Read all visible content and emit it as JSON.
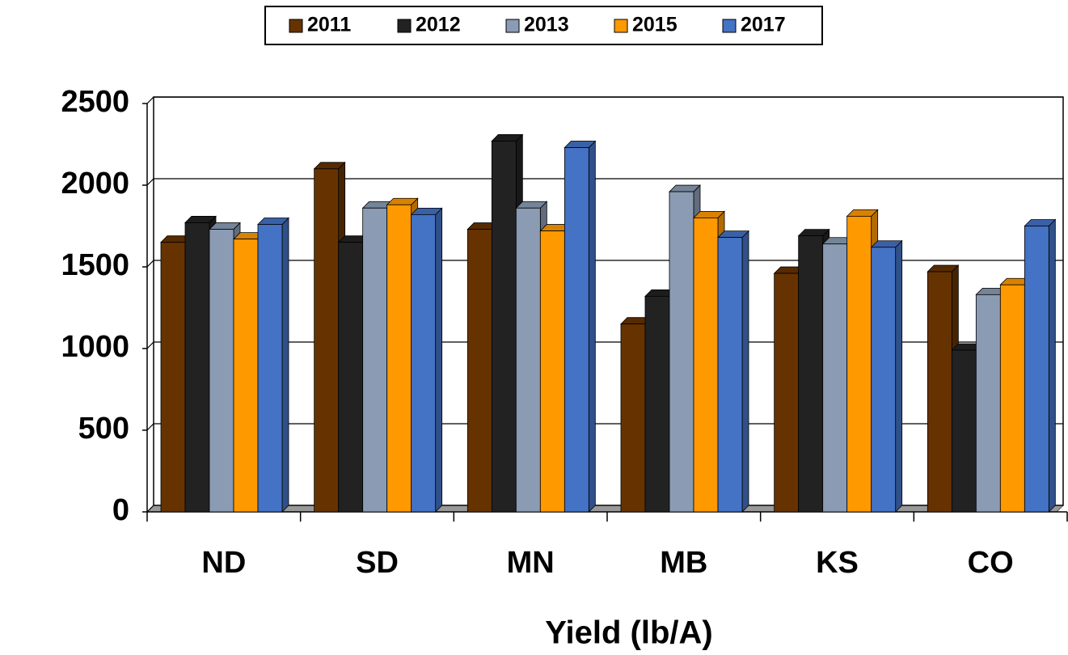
{
  "chart_data": {
    "type": "bar3d",
    "x_label": "Yield (lb/A)",
    "categories": [
      "ND",
      "SD",
      "MN",
      "MB",
      "KS",
      "CO"
    ],
    "series": [
      {
        "name": "2011",
        "color": "#663300",
        "values": [
          1650,
          2100,
          1730,
          1150,
          1460,
          1470
        ]
      },
      {
        "name": "2012",
        "color": "#222222",
        "values": [
          1770,
          1650,
          2270,
          1320,
          1690,
          990
        ]
      },
      {
        "name": "2013",
        "color": "#8a9bb3",
        "values": [
          1730,
          1860,
          1860,
          1960,
          1640,
          1330
        ]
      },
      {
        "name": "2015",
        "color": "#ff9900",
        "values": [
          1670,
          1880,
          1720,
          1800,
          1810,
          1390
        ]
      },
      {
        "name": "2017",
        "color": "#4472c4",
        "values": [
          1760,
          1820,
          2230,
          1680,
          1620,
          1750
        ]
      }
    ],
    "ylim": [
      0,
      2500
    ],
    "yticks": [
      0,
      500,
      1000,
      1500,
      2000,
      2500
    ],
    "grid": true,
    "legend": "top"
  }
}
